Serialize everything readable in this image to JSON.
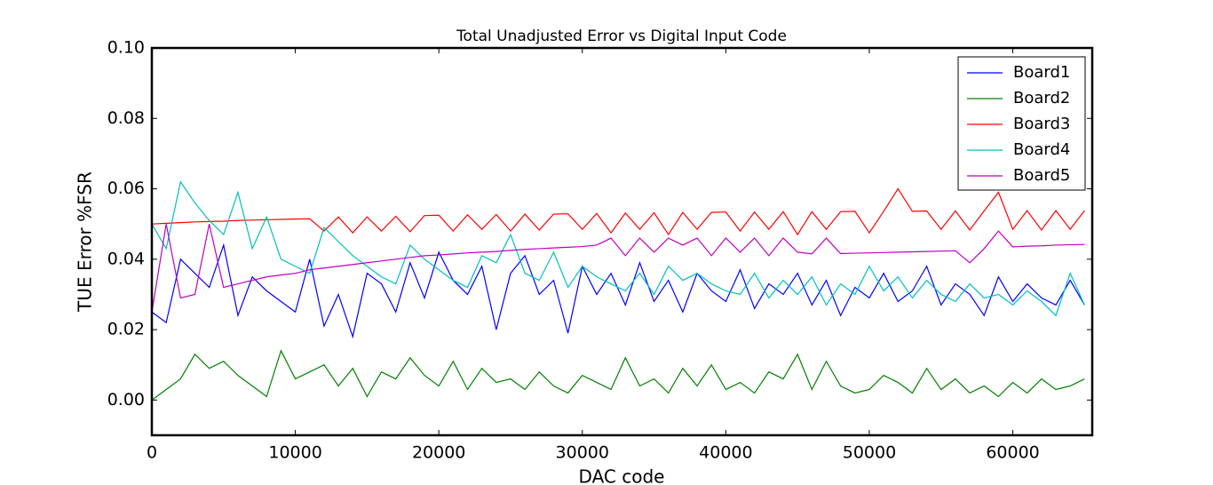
{
  "chart_data": {
    "type": "line",
    "title": "Total Unadjusted Error vs Digital Input Code",
    "x_label": "DAC code",
    "y_label": "TUE Error %FSR",
    "x": [
      0,
      1000,
      2000,
      3000,
      4000,
      5000,
      6000,
      7000,
      8000,
      9000,
      10000,
      11000,
      12000,
      13000,
      14000,
      15000,
      16000,
      17000,
      18000,
      19000,
      20000,
      21000,
      22000,
      23000,
      24000,
      25000,
      26000,
      27000,
      28000,
      29000,
      30000,
      31000,
      32000,
      33000,
      34000,
      35000,
      36000,
      37000,
      38000,
      39000,
      40000,
      41000,
      42000,
      43000,
      44000,
      45000,
      46000,
      47000,
      48000,
      49000,
      50000,
      51000,
      52000,
      53000,
      54000,
      55000,
      56000,
      57000,
      58000,
      59000,
      60000,
      61000,
      62000,
      63000,
      64000,
      65000
    ],
    "series": [
      {
        "name": "Board1",
        "color": "#0000ff",
        "values": [
          0.025,
          0.022,
          0.04,
          0.036,
          0.032,
          0.044,
          0.024,
          0.035,
          0.031,
          0.028,
          0.025,
          0.04,
          0.021,
          0.03,
          0.018,
          0.036,
          0.033,
          0.025,
          0.039,
          0.029,
          0.042,
          0.034,
          0.03,
          0.038,
          0.02,
          0.036,
          0.041,
          0.03,
          0.034,
          0.019,
          0.038,
          0.03,
          0.036,
          0.027,
          0.039,
          0.028,
          0.034,
          0.025,
          0.036,
          0.031,
          0.028,
          0.037,
          0.026,
          0.033,
          0.03,
          0.036,
          0.027,
          0.034,
          0.024,
          0.032,
          0.029,
          0.036,
          0.028,
          0.031,
          0.038,
          0.027,
          0.033,
          0.03,
          0.024,
          0.035,
          0.028,
          0.033,
          0.029,
          0.027,
          0.034,
          0.027
        ]
      },
      {
        "name": "Board2",
        "color": "#008000",
        "values": [
          0,
          0.003,
          0.006,
          0.013,
          0.009,
          0.011,
          0.007,
          0.004,
          0.001,
          0.014,
          0.006,
          0.008,
          0.01,
          0.004,
          0.009,
          0.001,
          0.008,
          0.006,
          0.012,
          0.007,
          0.004,
          0.011,
          0.003,
          0.009,
          0.005,
          0.006,
          0.003,
          0.008,
          0.004,
          0.002,
          0.007,
          0.005,
          0.003,
          0.012,
          0.004,
          0.006,
          0.002,
          0.009,
          0.004,
          0.01,
          0.003,
          0.005,
          0.002,
          0.008,
          0.006,
          0.013,
          0.003,
          0.011,
          0.004,
          0.002,
          0.003,
          0.007,
          0.005,
          0.002,
          0.009,
          0.003,
          0.006,
          0.002,
          0.004,
          0.001,
          0.005,
          0.002,
          0.006,
          0.003,
          0.004,
          0.006
        ]
      },
      {
        "name": "Board3",
        "color": "#ff0000",
        "values": [
          0.05,
          0.0502,
          0.0504,
          0.0506,
          0.0507,
          0.0508,
          0.051,
          0.0511,
          0.0512,
          0.0513,
          0.0514,
          0.0515,
          0.048,
          0.052,
          0.0475,
          0.052,
          0.048,
          0.0522,
          0.0478,
          0.0524,
          0.0525,
          0.048,
          0.0526,
          0.0485,
          0.0527,
          0.048,
          0.0528,
          0.0483,
          0.0528,
          0.0529,
          0.0485,
          0.053,
          0.0475,
          0.0531,
          0.0485,
          0.0532,
          0.047,
          0.0533,
          0.0485,
          0.0533,
          0.0534,
          0.048,
          0.0534,
          0.0485,
          0.0535,
          0.047,
          0.0535,
          0.0485,
          0.0535,
          0.0536,
          0.0475,
          0.0536,
          0.06,
          0.0536,
          0.0537,
          0.0485,
          0.0537,
          0.0483,
          0.0537,
          0.059,
          0.0485,
          0.0538,
          0.0483,
          0.0538,
          0.0485,
          0.0538
        ]
      },
      {
        "name": "Board4",
        "color": "#00bfbf",
        "values": [
          0.05,
          0.043,
          0.062,
          0.056,
          0.051,
          0.047,
          0.059,
          0.043,
          0.052,
          0.04,
          0.038,
          0.036,
          0.049,
          0.045,
          0.041,
          0.038,
          0.035,
          0.033,
          0.044,
          0.04,
          0.037,
          0.034,
          0.032,
          0.041,
          0.039,
          0.047,
          0.036,
          0.034,
          0.042,
          0.032,
          0.038,
          0.035,
          0.033,
          0.031,
          0.036,
          0.03,
          0.038,
          0.034,
          0.036,
          0.033,
          0.031,
          0.03,
          0.036,
          0.029,
          0.034,
          0.03,
          0.035,
          0.027,
          0.033,
          0.03,
          0.038,
          0.031,
          0.035,
          0.029,
          0.034,
          0.03,
          0.028,
          0.033,
          0.029,
          0.03,
          0.027,
          0.031,
          0.028,
          0.024,
          0.036,
          0.027
        ]
      },
      {
        "name": "Board5",
        "color": "#bf00bf",
        "values": [
          0.025,
          0.05,
          0.029,
          0.03,
          0.05,
          0.032,
          0.033,
          0.034,
          0.035,
          0.0355,
          0.036,
          0.037,
          0.0375,
          0.038,
          0.0385,
          0.039,
          0.0395,
          0.04,
          0.0405,
          0.041,
          0.0412,
          0.0415,
          0.0418,
          0.042,
          0.0422,
          0.0425,
          0.0428,
          0.043,
          0.0432,
          0.0434,
          0.0436,
          0.044,
          0.046,
          0.041,
          0.046,
          0.042,
          0.046,
          0.044,
          0.046,
          0.041,
          0.046,
          0.042,
          0.046,
          0.041,
          0.046,
          0.042,
          0.0415,
          0.046,
          0.0416,
          0.0417,
          0.0418,
          0.0419,
          0.042,
          0.0421,
          0.0422,
          0.0423,
          0.0424,
          0.039,
          0.043,
          0.048,
          0.0435,
          0.0437,
          0.0438,
          0.044,
          0.0441,
          0.0442
        ]
      }
    ],
    "xlim": [
      0,
      65535
    ],
    "ylim": [
      -0.01,
      0.1
    ],
    "xticks": [
      0,
      10000,
      20000,
      30000,
      40000,
      50000,
      60000
    ],
    "yticks": [
      {
        "value": 0,
        "label": "0.00"
      },
      0.02,
      0.04,
      0.06,
      0.08,
      {
        "value": 0.1,
        "label": "0.10"
      }
    ],
    "legend": "upper right"
  }
}
